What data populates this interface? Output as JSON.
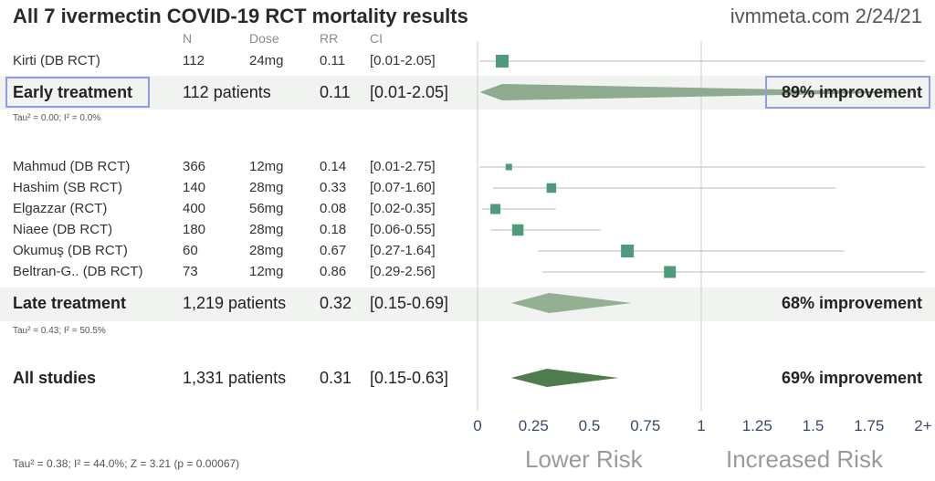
{
  "title": "All 7 ivermectin COVID-19 RCT mortality results",
  "source": "ivmmeta.com 2/24/21",
  "columns": {
    "n": "N",
    "dose": "Dose",
    "rr": "RR",
    "ci": "CI"
  },
  "chart_data": {
    "type": "forest",
    "x_axis": {
      "min": 0,
      "max": 2,
      "null_line": 1,
      "ticks": [
        {
          "v": 0,
          "label": "0"
        },
        {
          "v": 0.25,
          "label": "0.25"
        },
        {
          "v": 0.5,
          "label": "0.5"
        },
        {
          "v": 0.75,
          "label": "0.75"
        },
        {
          "v": 1,
          "label": "1"
        },
        {
          "v": 1.25,
          "label": "1.25"
        },
        {
          "v": 1.5,
          "label": "1.5"
        },
        {
          "v": 1.75,
          "label": "1.75"
        },
        {
          "v": 2,
          "label": "2+"
        }
      ],
      "left_label": "Lower Risk",
      "right_label": "Increased Risk"
    },
    "groups": [
      {
        "name": "Early treatment",
        "patients": "112 patients",
        "rr": "0.11",
        "ci": "[0.01-2.05]",
        "rr_value": 0.11,
        "ci_low": 0.01,
        "ci_high": 2.05,
        "improvement": "89% improvement",
        "heterogeneity": "Tau² = 0.00; I² = 0.0%",
        "studies": [
          {
            "name": "Kirti (DB RCT)",
            "n": "112",
            "dose": "24mg",
            "rr": "0.11",
            "ci": "[0.01-2.05]",
            "rr_value": 0.11,
            "ci_low": 0.01,
            "ci_high": 2.05,
            "weight": 1.0
          }
        ]
      },
      {
        "name": "Late treatment",
        "patients": "1,219 patients",
        "rr": "0.32",
        "ci": "[0.15-0.69]",
        "rr_value": 0.32,
        "ci_low": 0.15,
        "ci_high": 0.69,
        "improvement": "68% improvement",
        "heterogeneity": "Tau² = 0.43; I² = 50.5%",
        "studies": [
          {
            "name": "Mahmud (DB RCT)",
            "n": "366",
            "dose": "12mg",
            "rr": "0.14",
            "ci": "[0.01-2.75]",
            "rr_value": 0.14,
            "ci_low": 0.01,
            "ci_high": 2.75,
            "weight": 0.3
          },
          {
            "name": "Hashim (SB RCT)",
            "n": "140",
            "dose": "28mg",
            "rr": "0.33",
            "ci": "[0.07-1.60]",
            "rr_value": 0.33,
            "ci_low": 0.07,
            "ci_high": 1.6,
            "weight": 0.65
          },
          {
            "name": "Elgazzar (RCT)",
            "n": "400",
            "dose": "56mg",
            "rr": "0.08",
            "ci": "[0.02-0.35]",
            "rr_value": 0.08,
            "ci_low": 0.02,
            "ci_high": 0.35,
            "weight": 0.7
          },
          {
            "name": "Niaee (DB RCT)",
            "n": "180",
            "dose": "28mg",
            "rr": "0.18",
            "ci": "[0.06-0.55]",
            "rr_value": 0.18,
            "ci_low": 0.06,
            "ci_high": 0.55,
            "weight": 0.85
          },
          {
            "name": "Okumuş (DB RCT)",
            "n": "60",
            "dose": "28mg",
            "rr": "0.67",
            "ci": "[0.27-1.64]",
            "rr_value": 0.67,
            "ci_low": 0.27,
            "ci_high": 1.64,
            "weight": 1.0
          },
          {
            "name": "Beltran-G.. (DB RCT)",
            "n": "73",
            "dose": "12mg",
            "rr": "0.86",
            "ci": "[0.29-2.56]",
            "rr_value": 0.86,
            "ci_low": 0.29,
            "ci_high": 2.56,
            "weight": 0.9
          }
        ]
      }
    ],
    "overall": {
      "name": "All studies",
      "patients": "1,331 patients",
      "rr": "0.31",
      "ci": "[0.15-0.63]",
      "rr_value": 0.31,
      "ci_low": 0.15,
      "ci_high": 0.63,
      "improvement": "69% improvement",
      "heterogeneity": "Tau² = 0.38; I² = 44.0%; Z = 3.21 (p = 0.00067)"
    },
    "colors": {
      "study_marker": "#4e9a7a",
      "ci_line": "#c8c8c8",
      "early_diamond": "#8fab8f",
      "late_diamond": "#93b093",
      "overall_diamond": "#4f7c4f",
      "axis": "#cccccc",
      "band": "#f0f3ef",
      "highlight": "#8e9de0"
    }
  }
}
